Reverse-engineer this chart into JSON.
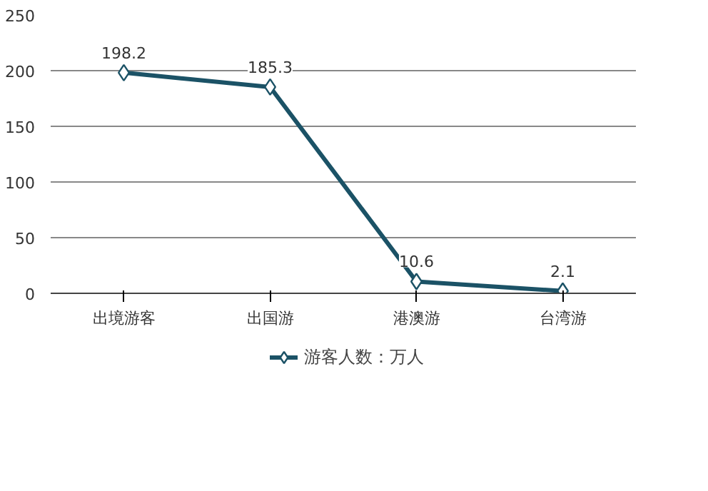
{
  "chart_data": {
    "type": "line",
    "categories": [
      "出境游客",
      "出国游",
      "港澳游",
      "台湾游"
    ],
    "series": [
      {
        "name": "游客人数：万人",
        "color": "#1b5266",
        "values": [
          198.2,
          185.3,
          10.6,
          2.1
        ]
      }
    ],
    "ylim": [
      0,
      250
    ],
    "yticks": [
      0,
      50,
      100,
      150,
      200,
      250
    ],
    "grid": "y",
    "legend": "bottom",
    "marker": "diamond",
    "data_labels": true
  }
}
